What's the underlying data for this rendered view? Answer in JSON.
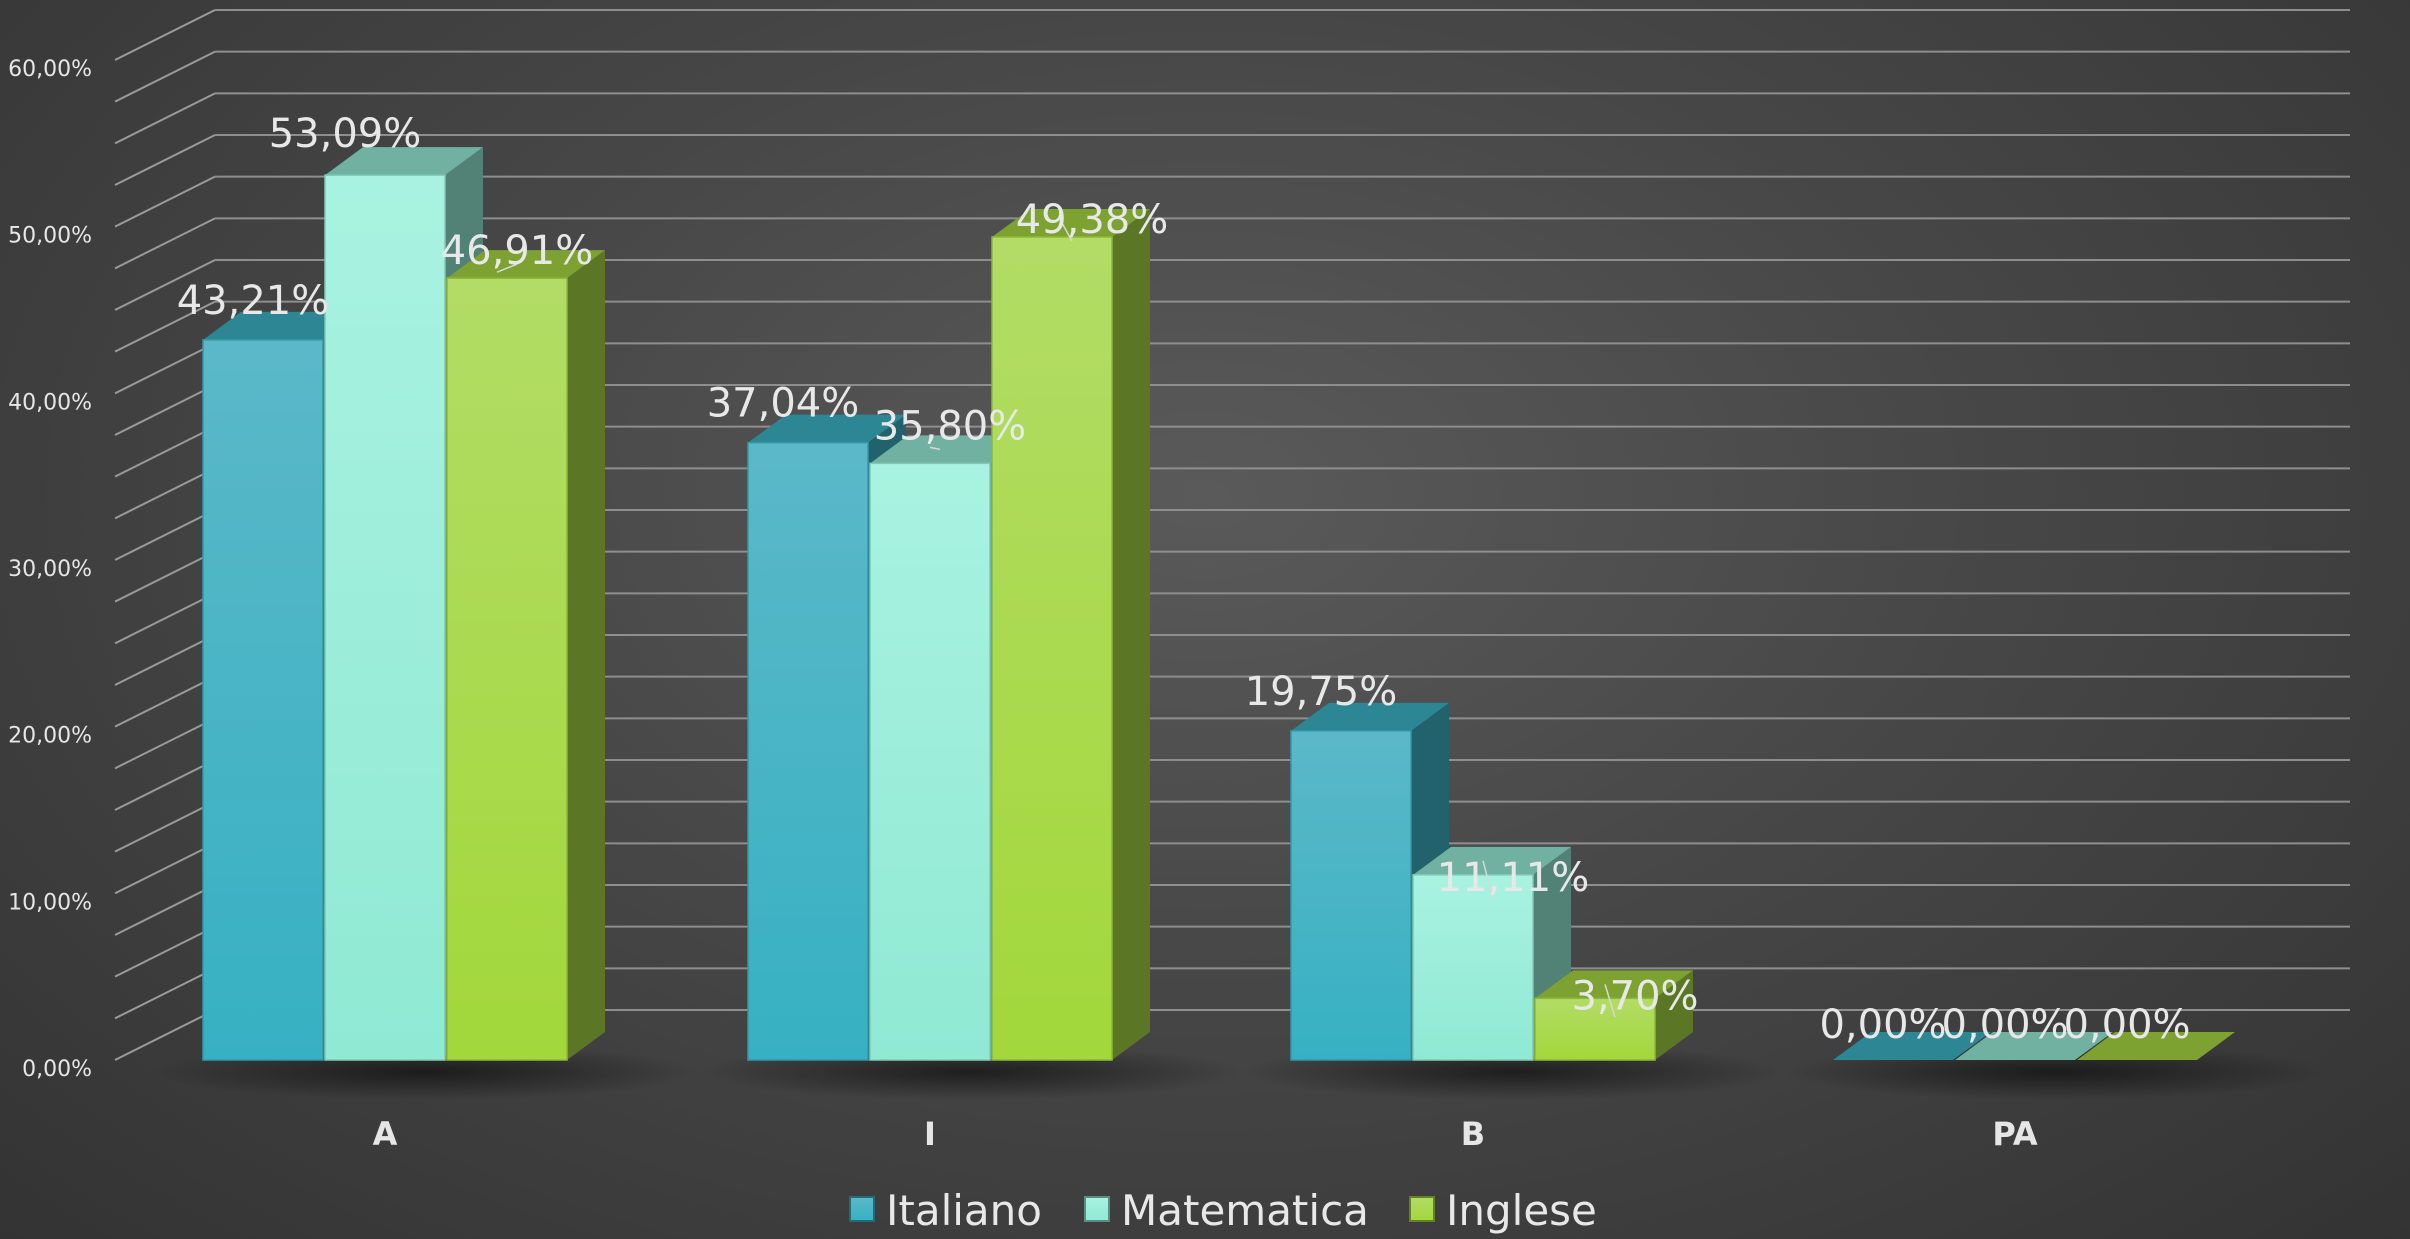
{
  "chart_data": {
    "type": "bar",
    "categories": [
      "A",
      "I",
      "B",
      "PA"
    ],
    "series": [
      {
        "name": "Italiano",
        "values": [
          43.21,
          37.04,
          19.75,
          0.0
        ],
        "labels": [
          "43,21%",
          "37,04%",
          "19,75%",
          "0,00%"
        ],
        "color": "#3cb3c5"
      },
      {
        "name": "Matematica",
        "values": [
          53.09,
          35.8,
          11.11,
          0.0
        ],
        "labels": [
          "53,09%",
          "35,80%",
          "11,11%",
          "0,00%"
        ],
        "color": "#95ecd6"
      },
      {
        "name": "Inglese",
        "values": [
          46.91,
          49.38,
          3.7,
          0.0
        ],
        "labels": [
          "46,91%",
          "49,38%",
          "3,70%",
          "0,00%"
        ],
        "color": "#a6d843"
      }
    ],
    "yticks": [
      "0,00%",
      "10,00%",
      "20,00%",
      "30,00%",
      "40,00%",
      "50,00%",
      "60,00%"
    ],
    "ylim": [
      0,
      60
    ],
    "grid": true,
    "legend_position": "bottom",
    "title": "",
    "xlabel": "",
    "ylabel": ""
  }
}
